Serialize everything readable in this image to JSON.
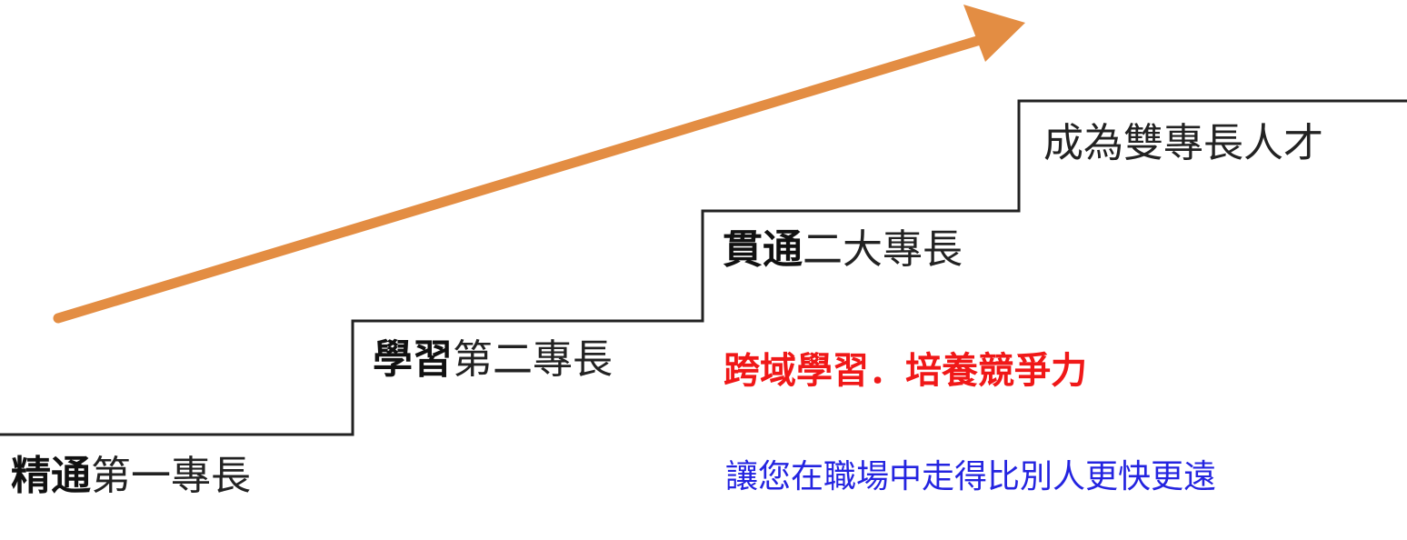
{
  "colors": {
    "arrow": "#e38d43",
    "stairs": "#222222",
    "tagline": "#f01818",
    "subline": "#2424e0"
  },
  "stages": [
    {
      "bold": "精通",
      "rest": "第一專長"
    },
    {
      "bold": "學習",
      "rest": "第二專長"
    },
    {
      "bold": "貫通",
      "rest": "二大專長"
    },
    {
      "bold": "",
      "rest": "成為雙專長人才"
    }
  ],
  "tagline": "跨域學習．培養競爭力",
  "subline": "讓您在職場中走得比別人更快更遠"
}
